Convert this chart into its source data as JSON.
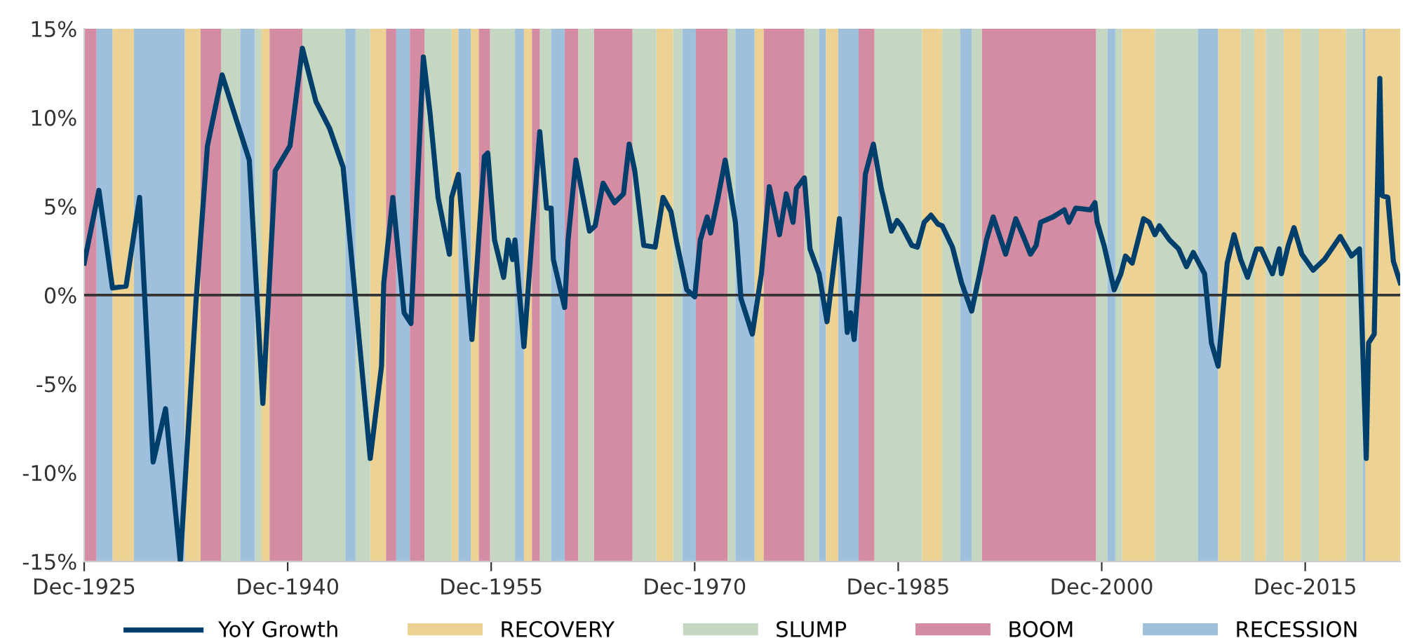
{
  "chart_data": {
    "type": "line",
    "xlim": [
      "1925-12",
      "2022-12"
    ],
    "xticks": [
      {
        "value": "1925-12",
        "label": "Dec-1925"
      },
      {
        "value": "1940-12",
        "label": "Dec-1940"
      },
      {
        "value": "1955-12",
        "label": "Dec-1955"
      },
      {
        "value": "1970-12",
        "label": "Dec-1970"
      },
      {
        "value": "1985-12",
        "label": "Dec-1985"
      },
      {
        "value": "2000-12",
        "label": "Dec-2000"
      },
      {
        "value": "2015-12",
        "label": "Dec-2015"
      }
    ],
    "ylim": [
      -15,
      15
    ],
    "yticks": [
      {
        "value": -15,
        "label": "-15%"
      },
      {
        "value": -10,
        "label": "-10%"
      },
      {
        "value": -5,
        "label": "-5%"
      },
      {
        "value": 0,
        "label": "0%"
      },
      {
        "value": 5,
        "label": "5%"
      },
      {
        "value": 10,
        "label": "10%"
      },
      {
        "value": 15,
        "label": "15%"
      }
    ],
    "grid": false,
    "legend": "bottom",
    "ref_lines": [
      {
        "axis": "y",
        "value": 0,
        "color": "#333333"
      }
    ],
    "series": [
      {
        "name": "YoY Growth",
        "color": "#003e6b",
        "x": [
          "1925-12",
          "1927-01",
          "1928-01",
          "1929-01",
          "1930-01",
          "1931-01",
          "1931-12",
          "1933-01",
          "1934-03",
          "1935-01",
          "1936-02",
          "1937-05",
          "1938-02",
          "1939-02",
          "1940-01",
          "1941-02",
          "1942-01",
          "1943-01",
          "1944-01",
          "1945-01",
          "1945-12",
          "1947-01",
          "1947-11",
          "1948-01",
          "1948-09",
          "1949-07",
          "1950-01",
          "1950-12",
          "1951-06",
          "1952-01",
          "1952-11",
          "1953-01",
          "1953-07",
          "1954-07",
          "1955-06",
          "1955-09",
          "1956-03",
          "1956-11",
          "1957-03",
          "1957-07",
          "1957-09",
          "1958-05",
          "1959-07",
          "1960-01",
          "1960-05",
          "1960-07",
          "1961-05",
          "1961-08",
          "1962-03",
          "1963-03",
          "1963-08",
          "1964-03",
          "1965-01",
          "1965-09",
          "1966-02",
          "1966-07",
          "1967-03",
          "1968-01",
          "1968-08",
          "1969-03",
          "1969-08",
          "1970-05",
          "1970-12",
          "1971-05",
          "1971-11",
          "1972-02",
          "1972-08",
          "1973-03",
          "1973-12",
          "1974-05",
          "1975-03",
          "1975-11",
          "1976-06",
          "1977-03",
          "1977-09",
          "1978-03",
          "1978-06",
          "1979-01",
          "1979-06",
          "1980-02",
          "1980-09",
          "1981-08",
          "1982-03",
          "1982-06",
          "1982-09",
          "1983-01",
          "1983-07",
          "1984-02",
          "1984-09",
          "1985-06",
          "1985-11",
          "1986-03",
          "1986-12",
          "1987-05",
          "1987-11",
          "1988-05",
          "1988-11",
          "1989-03",
          "1989-12",
          "1990-08",
          "1991-05",
          "1991-12",
          "1992-06",
          "1992-12",
          "1993-11",
          "1994-08",
          "1995-02",
          "1995-09",
          "1996-02",
          "1996-06",
          "1997-05",
          "1998-03",
          "1998-07",
          "1999-01",
          "2000-02",
          "2000-06",
          "2000-08",
          "2001-02",
          "2001-11",
          "2002-05",
          "2002-09",
          "2003-03",
          "2004-01",
          "2004-06",
          "2004-11",
          "2005-03",
          "2005-12",
          "2006-08",
          "2007-03",
          "2007-09",
          "2008-07",
          "2009-01",
          "2009-07",
          "2010-03",
          "2010-09",
          "2011-03",
          "2011-09",
          "2012-05",
          "2012-09",
          "2013-07",
          "2014-01",
          "2014-03",
          "2014-09",
          "2015-02",
          "2015-09",
          "2016-07",
          "2017-05",
          "2018-07",
          "2019-05",
          "2019-12",
          "2020-06",
          "2020-08",
          "2021-01",
          "2021-06",
          "2021-08",
          "2022-01",
          "2022-06",
          "2022-12"
        ],
        "values": [
          1.8,
          5.9,
          0.4,
          0.5,
          5.5,
          -9.4,
          -6.4,
          -15.0,
          -0.3,
          8.4,
          12.4,
          9.4,
          7.6,
          -6.1,
          7.0,
          8.4,
          13.9,
          10.9,
          9.4,
          7.2,
          -0.3,
          -9.2,
          -4.0,
          0.7,
          5.5,
          -1.0,
          -1.6,
          13.4,
          10.2,
          5.5,
          2.3,
          5.5,
          6.8,
          -2.5,
          7.8,
          8.0,
          3.1,
          1.0,
          3.1,
          2.0,
          3.1,
          -2.9,
          9.2,
          4.9,
          4.9,
          2.0,
          -0.7,
          3.1,
          7.6,
          3.6,
          3.9,
          6.3,
          5.2,
          5.7,
          8.5,
          7.0,
          2.8,
          2.7,
          5.5,
          4.7,
          3.0,
          0.3,
          -0.1,
          3.1,
          4.4,
          3.5,
          5.3,
          7.6,
          4.1,
          -0.2,
          -2.2,
          1.2,
          6.1,
          3.4,
          5.7,
          4.1,
          6.0,
          6.6,
          2.6,
          1.2,
          -1.5,
          4.3,
          -2.1,
          -1.0,
          -2.5,
          0.7,
          6.8,
          8.5,
          6.0,
          3.6,
          4.2,
          3.9,
          2.8,
          2.7,
          4.1,
          4.5,
          4.0,
          3.9,
          2.7,
          0.7,
          -0.9,
          1.2,
          3.1,
          4.4,
          2.3,
          4.3,
          3.4,
          2.3,
          2.8,
          4.1,
          4.4,
          4.8,
          4.1,
          4.9,
          4.8,
          5.2,
          4.1,
          2.8,
          0.3,
          1.2,
          2.2,
          1.8,
          4.3,
          4.1,
          3.4,
          3.9,
          3.1,
          2.6,
          1.6,
          2.4,
          1.2,
          -2.7,
          -4.0,
          1.8,
          3.4,
          2.0,
          1.0,
          2.6,
          2.6,
          1.2,
          2.6,
          1.2,
          2.8,
          3.8,
          2.3,
          1.4,
          2.0,
          3.3,
          2.2,
          2.6,
          -9.2,
          -2.7,
          -2.2,
          12.2,
          5.6,
          5.5,
          1.9,
          0.7
        ]
      }
    ],
    "bands": [
      {
        "axis": "x",
        "from": "1928-01",
        "to": "1929-08",
        "label": "RECOVERY",
        "color": "#ecd394"
      },
      {
        "axis": "x",
        "from": "1933-05",
        "to": "1934-07",
        "color": "#ecd394"
      },
      {
        "axis": "x",
        "from": "1939-01",
        "to": "1939-08",
        "color": "#ecd394"
      },
      {
        "axis": "x",
        "from": "1947-01",
        "to": "1948-03",
        "color": "#ecd394"
      },
      {
        "axis": "x",
        "from": "1953-01",
        "to": "1953-07",
        "color": "#ecd394"
      },
      {
        "axis": "x",
        "from": "1954-06",
        "to": "1955-01",
        "color": "#ecd394"
      },
      {
        "axis": "x",
        "from": "1958-05",
        "to": "1958-12",
        "color": "#ecd394"
      },
      {
        "axis": "x",
        "from": "1968-02",
        "to": "1969-05",
        "color": "#ecd394"
      },
      {
        "axis": "x",
        "from": "1975-05",
        "to": "1976-01",
        "color": "#ecd394"
      },
      {
        "axis": "x",
        "from": "1980-08",
        "to": "1981-07",
        "color": "#ecd394"
      },
      {
        "axis": "x",
        "from": "1987-09",
        "to": "1989-03",
        "color": "#ecd394"
      },
      {
        "axis": "x",
        "from": "2002-06",
        "to": "2004-11",
        "color": "#ecd394"
      },
      {
        "axis": "x",
        "from": "2009-07",
        "to": "2011-03",
        "color": "#ecd394"
      },
      {
        "axis": "x",
        "from": "2012-03",
        "to": "2013-01",
        "color": "#ecd394"
      },
      {
        "axis": "x",
        "from": "2014-05",
        "to": "2015-08",
        "color": "#ecd394"
      },
      {
        "axis": "x",
        "from": "2016-12",
        "to": "2018-12",
        "color": "#ecd394"
      },
      {
        "axis": "x",
        "from": "2020-05",
        "to": "2022-12",
        "color": "#ecd394"
      },
      {
        "axis": "x",
        "from": "1936-01",
        "to": "1937-06",
        "label": "SLUMP",
        "color": "#c5d6c1"
      },
      {
        "axis": "x",
        "from": "1938-07",
        "to": "1939-01",
        "color": "#c5d6c1"
      },
      {
        "axis": "x",
        "from": "1942-01",
        "to": "1945-03",
        "color": "#c5d6c1"
      },
      {
        "axis": "x",
        "from": "1945-12",
        "to": "1947-01",
        "color": "#c5d6c1"
      },
      {
        "axis": "x",
        "from": "1951-01",
        "to": "1953-01",
        "color": "#c5d6c1"
      },
      {
        "axis": "x",
        "from": "1955-11",
        "to": "1957-09",
        "color": "#c5d6c1"
      },
      {
        "axis": "x",
        "from": "1959-07",
        "to": "1960-05",
        "color": "#c5d6c1"
      },
      {
        "axis": "x",
        "from": "1962-05",
        "to": "1963-07",
        "color": "#c5d6c1"
      },
      {
        "axis": "x",
        "from": "1966-05",
        "to": "1968-02",
        "color": "#c5d6c1"
      },
      {
        "axis": "x",
        "from": "1969-05",
        "to": "1970-01",
        "color": "#c5d6c1"
      },
      {
        "axis": "x",
        "from": "1973-05",
        "to": "1973-12",
        "color": "#c5d6c1"
      },
      {
        "axis": "x",
        "from": "1979-01",
        "to": "1980-02",
        "color": "#c5d6c1"
      },
      {
        "axis": "x",
        "from": "1984-03",
        "to": "1987-09",
        "color": "#c5d6c1"
      },
      {
        "axis": "x",
        "from": "1989-03",
        "to": "1990-07",
        "color": "#c5d6c1"
      },
      {
        "axis": "x",
        "from": "1991-05",
        "to": "1992-02",
        "color": "#c5d6c1"
      },
      {
        "axis": "x",
        "from": "2000-07",
        "to": "2001-05",
        "color": "#c5d6c1"
      },
      {
        "axis": "x",
        "from": "2001-12",
        "to": "2002-06",
        "color": "#c5d6c1"
      },
      {
        "axis": "x",
        "from": "2004-11",
        "to": "2008-01",
        "color": "#c5d6c1"
      },
      {
        "axis": "x",
        "from": "2011-03",
        "to": "2012-03",
        "color": "#c5d6c1"
      },
      {
        "axis": "x",
        "from": "2013-01",
        "to": "2014-05",
        "color": "#c5d6c1"
      },
      {
        "axis": "x",
        "from": "2015-08",
        "to": "2016-12",
        "color": "#c5d6c1"
      },
      {
        "axis": "x",
        "from": "2018-12",
        "to": "2020-03",
        "color": "#c5d6c1"
      },
      {
        "axis": "x",
        "from": "1925-12",
        "to": "1926-11",
        "label": "BOOM",
        "color": "#d48ca3"
      },
      {
        "axis": "x",
        "from": "1934-07",
        "to": "1936-01",
        "color": "#d48ca3"
      },
      {
        "axis": "x",
        "from": "1939-08",
        "to": "1942-01",
        "color": "#d48ca3"
      },
      {
        "axis": "x",
        "from": "1948-03",
        "to": "1948-12",
        "color": "#d48ca3"
      },
      {
        "axis": "x",
        "from": "1949-12",
        "to": "1951-01",
        "color": "#d48ca3"
      },
      {
        "axis": "x",
        "from": "1955-01",
        "to": "1955-11",
        "color": "#d48ca3"
      },
      {
        "axis": "x",
        "from": "1958-12",
        "to": "1959-07",
        "color": "#d48ca3"
      },
      {
        "axis": "x",
        "from": "1961-05",
        "to": "1962-05",
        "color": "#d48ca3"
      },
      {
        "axis": "x",
        "from": "1963-07",
        "to": "1966-05",
        "color": "#d48ca3"
      },
      {
        "axis": "x",
        "from": "1971-01",
        "to": "1973-05",
        "color": "#d48ca3"
      },
      {
        "axis": "x",
        "from": "1976-01",
        "to": "1979-01",
        "color": "#d48ca3"
      },
      {
        "axis": "x",
        "from": "1983-01",
        "to": "1984-03",
        "color": "#d48ca3"
      },
      {
        "axis": "x",
        "from": "1992-02",
        "to": "2000-07",
        "color": "#d48ca3"
      },
      {
        "axis": "x",
        "from": "1926-11",
        "to": "1928-01",
        "label": "RECESSION",
        "color": "#9fc0dc"
      },
      {
        "axis": "x",
        "from": "1929-08",
        "to": "1933-05",
        "color": "#9fc0dc"
      },
      {
        "axis": "x",
        "from": "1937-06",
        "to": "1938-07",
        "color": "#9fc0dc"
      },
      {
        "axis": "x",
        "from": "1945-03",
        "to": "1945-12",
        "color": "#9fc0dc"
      },
      {
        "axis": "x",
        "from": "1948-12",
        "to": "1949-12",
        "color": "#9fc0dc"
      },
      {
        "axis": "x",
        "from": "1953-07",
        "to": "1954-06",
        "color": "#9fc0dc"
      },
      {
        "axis": "x",
        "from": "1957-09",
        "to": "1958-05",
        "color": "#9fc0dc"
      },
      {
        "axis": "x",
        "from": "1960-05",
        "to": "1961-05",
        "color": "#9fc0dc"
      },
      {
        "axis": "x",
        "from": "1970-01",
        "to": "1971-01",
        "color": "#9fc0dc"
      },
      {
        "axis": "x",
        "from": "1973-12",
        "to": "1975-05",
        "color": "#9fc0dc"
      },
      {
        "axis": "x",
        "from": "1980-02",
        "to": "1980-08",
        "color": "#9fc0dc"
      },
      {
        "axis": "x",
        "from": "1981-07",
        "to": "1983-01",
        "color": "#9fc0dc"
      },
      {
        "axis": "x",
        "from": "1990-07",
        "to": "1991-05",
        "color": "#9fc0dc"
      },
      {
        "axis": "x",
        "from": "2001-05",
        "to": "2001-12",
        "color": "#9fc0dc"
      },
      {
        "axis": "x",
        "from": "2008-01",
        "to": "2009-07",
        "color": "#9fc0dc"
      },
      {
        "axis": "x",
        "from": "2020-03",
        "to": "2020-05",
        "color": "#9fc0dc"
      }
    ]
  }
}
